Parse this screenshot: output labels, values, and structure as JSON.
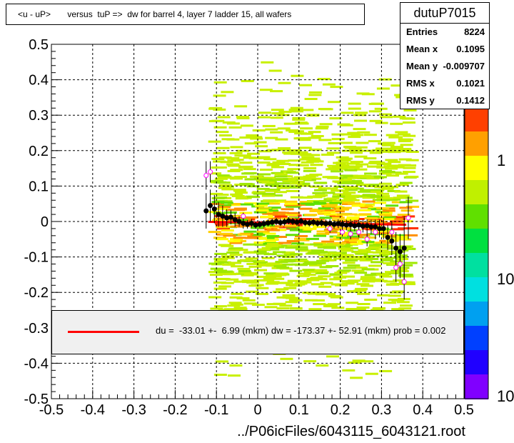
{
  "title": "<u - uP>       versus  tuP =>  dw for barrel 4, layer 7 ladder 15, all wafers",
  "stats": {
    "name": "dutuP7015",
    "rows": [
      {
        "key": "Entries",
        "value": "8224"
      },
      {
        "key": "Mean x",
        "value": "0.1095"
      },
      {
        "key": "Mean y",
        "value": "-0.009707"
      },
      {
        "key": "RMS x",
        "value": "0.1021"
      },
      {
        "key": "RMS y",
        "value": "0.1412"
      }
    ]
  },
  "legend": {
    "text": "du =  -33.01 +-  6.99 (mkm) dw = -173.37 +- 52.91 (mkm) prob = 0.002",
    "line_color": "#ff0000"
  },
  "xlabel": "../P06icFiles/6043115_6043121.root",
  "colors": {
    "profile_marker": "#000000",
    "open_marker": "#ff00ff",
    "fit_line": "#ff0000"
  },
  "colorbar_labels": [
    "1",
    "10",
    "10"
  ],
  "chart_data": {
    "type": "scatter",
    "xlim": [
      -0.5,
      0.5
    ],
    "ylim": [
      -0.5,
      0.5
    ],
    "x_ticks": [
      "-0.5",
      "-0.4",
      "-0.3",
      "-0.2",
      "-0.1",
      "0",
      "0.1",
      "0.2",
      "0.3",
      "0.4",
      "0.5"
    ],
    "y_ticks": [
      "-0.5",
      "-0.4",
      "-0.3",
      "-0.2",
      "-0.1",
      "0",
      "0.1",
      "0.2",
      "0.3",
      "0.4",
      "0.5"
    ],
    "grid": true,
    "fit_line": {
      "x": [
        -0.12,
        0.36
      ],
      "y": [
        -0.001,
        -0.009
      ]
    },
    "profile_points": [
      {
        "x": -0.125,
        "y": 0.03,
        "err": 0.05
      },
      {
        "x": -0.115,
        "y": 0.045,
        "err": 0.045
      },
      {
        "x": -0.105,
        "y": 0.035,
        "err": 0.04
      },
      {
        "x": -0.095,
        "y": 0.02,
        "err": 0.035
      },
      {
        "x": -0.085,
        "y": 0.015,
        "err": 0.03
      },
      {
        "x": -0.075,
        "y": 0.01,
        "err": 0.025
      },
      {
        "x": -0.065,
        "y": 0.012,
        "err": 0.02
      },
      {
        "x": -0.055,
        "y": 0.005,
        "err": 0.02
      },
      {
        "x": -0.045,
        "y": 0.0,
        "err": 0.015
      },
      {
        "x": -0.035,
        "y": -0.005,
        "err": 0.015
      },
      {
        "x": -0.025,
        "y": -0.008,
        "err": 0.012
      },
      {
        "x": -0.015,
        "y": -0.005,
        "err": 0.012
      },
      {
        "x": -0.005,
        "y": -0.01,
        "err": 0.01
      },
      {
        "x": 0.005,
        "y": -0.008,
        "err": 0.01
      },
      {
        "x": 0.015,
        "y": -0.006,
        "err": 0.01
      },
      {
        "x": 0.025,
        "y": -0.004,
        "err": 0.01
      },
      {
        "x": 0.035,
        "y": -0.002,
        "err": 0.01
      },
      {
        "x": 0.045,
        "y": 0.0,
        "err": 0.01
      },
      {
        "x": 0.055,
        "y": -0.003,
        "err": 0.01
      },
      {
        "x": 0.065,
        "y": -0.001,
        "err": 0.01
      },
      {
        "x": 0.075,
        "y": 0.002,
        "err": 0.01
      },
      {
        "x": 0.085,
        "y": 0.0,
        "err": 0.01
      },
      {
        "x": 0.095,
        "y": -0.002,
        "err": 0.01
      },
      {
        "x": 0.105,
        "y": 0.001,
        "err": 0.01
      },
      {
        "x": 0.115,
        "y": -0.003,
        "err": 0.01
      },
      {
        "x": 0.125,
        "y": -0.004,
        "err": 0.01
      },
      {
        "x": 0.135,
        "y": -0.002,
        "err": 0.01
      },
      {
        "x": 0.145,
        "y": -0.005,
        "err": 0.01
      },
      {
        "x": 0.155,
        "y": -0.004,
        "err": 0.01
      },
      {
        "x": 0.165,
        "y": -0.006,
        "err": 0.012
      },
      {
        "x": 0.175,
        "y": -0.005,
        "err": 0.012
      },
      {
        "x": 0.185,
        "y": -0.008,
        "err": 0.012
      },
      {
        "x": 0.195,
        "y": -0.006,
        "err": 0.012
      },
      {
        "x": 0.205,
        "y": -0.008,
        "err": 0.012
      },
      {
        "x": 0.215,
        "y": -0.01,
        "err": 0.015
      },
      {
        "x": 0.225,
        "y": -0.009,
        "err": 0.015
      },
      {
        "x": 0.235,
        "y": -0.012,
        "err": 0.015
      },
      {
        "x": 0.245,
        "y": -0.01,
        "err": 0.015
      },
      {
        "x": 0.255,
        "y": -0.013,
        "err": 0.018
      },
      {
        "x": 0.265,
        "y": -0.012,
        "err": 0.018
      },
      {
        "x": 0.275,
        "y": -0.015,
        "err": 0.02
      },
      {
        "x": 0.285,
        "y": -0.015,
        "err": 0.02
      },
      {
        "x": 0.295,
        "y": -0.02,
        "err": 0.025
      },
      {
        "x": 0.305,
        "y": -0.02,
        "err": 0.03
      },
      {
        "x": 0.315,
        "y": -0.045,
        "err": 0.035
      },
      {
        "x": 0.325,
        "y": -0.055,
        "err": 0.04
      },
      {
        "x": 0.335,
        "y": -0.075,
        "err": 0.045
      },
      {
        "x": 0.345,
        "y": -0.085,
        "err": 0.05
      },
      {
        "x": 0.355,
        "y": -0.075,
        "err": 0.09
      }
    ],
    "open_points": [
      {
        "x": -0.125,
        "y": 0.13,
        "err": 0.04
      },
      {
        "x": -0.115,
        "y": 0.14,
        "err": 0.03
      },
      {
        "x": -0.035,
        "y": 0.015,
        "err": 0.01
      },
      {
        "x": 0.175,
        "y": -0.02,
        "err": 0.012
      },
      {
        "x": 0.205,
        "y": -0.03,
        "err": 0.012
      },
      {
        "x": 0.225,
        "y": -0.035,
        "err": 0.015
      },
      {
        "x": 0.245,
        "y": -0.03,
        "err": 0.015
      },
      {
        "x": 0.265,
        "y": -0.05,
        "err": 0.02
      },
      {
        "x": 0.285,
        "y": -0.03,
        "err": 0.02
      },
      {
        "x": 0.325,
        "y": -0.03,
        "err": 0.03
      },
      {
        "x": 0.335,
        "y": -0.13,
        "err": 0.04
      },
      {
        "x": 0.345,
        "y": -0.12,
        "err": 0.04
      },
      {
        "x": 0.355,
        "y": -0.17,
        "err": 0.05
      },
      {
        "x": 0.365,
        "y": 0.01,
        "err": 0.06
      }
    ]
  }
}
